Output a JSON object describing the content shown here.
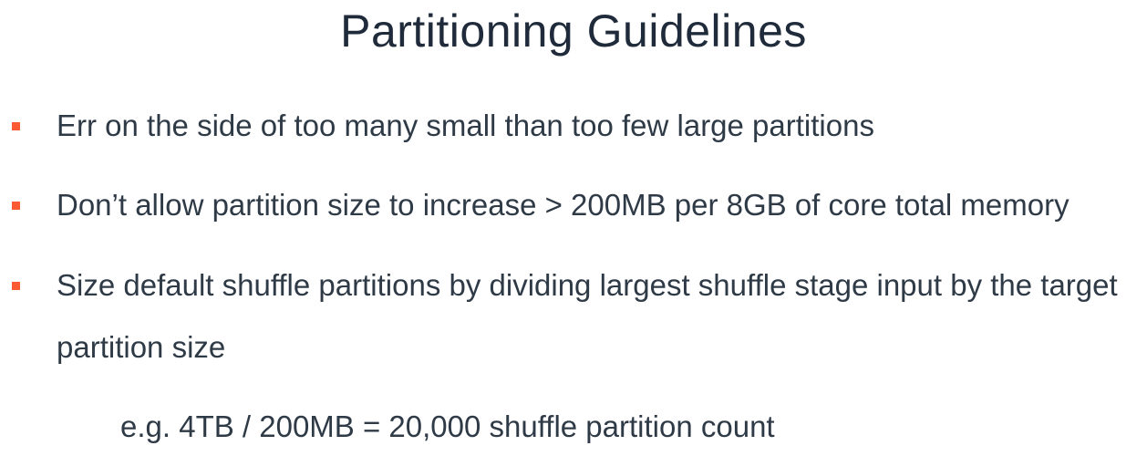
{
  "slide": {
    "title": "Partitioning Guidelines",
    "bullets": [
      {
        "text": "Err on the side of too many small than too few large partitions"
      },
      {
        "text": "Don’t allow partition size to increase > 200MB per 8GB of core total memory"
      },
      {
        "text": "Size default shuffle partitions by dividing largest shuffle stage input by the target partition size"
      }
    ],
    "example": "e.g. 4TB / 200MB = 20,000 shuffle partition count"
  },
  "colors": {
    "bullet_marker": "#ff5a36",
    "title_text": "#1f2a3a",
    "body_text": "#2f3a47"
  }
}
